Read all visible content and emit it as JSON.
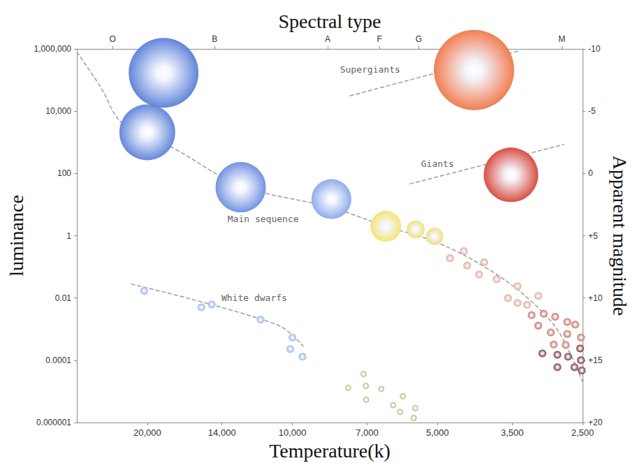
{
  "chart_data": {
    "type": "scatter",
    "x_label": "Temperature(k)",
    "x2_label": "Spectral type",
    "y_label": "luminance",
    "y2_label": "Apparent magnitude",
    "log": true,
    "grid": false,
    "xlim": [
      28000,
      2500
    ],
    "xticks": [
      {
        "value": 20000,
        "label": "20,000"
      },
      {
        "value": 14000,
        "label": "14,000"
      },
      {
        "value": 10000,
        "label": "10,000"
      },
      {
        "value": 7000,
        "label": "7,000"
      },
      {
        "value": 5000,
        "label": "5,000"
      },
      {
        "value": 3500,
        "label": "3,500"
      },
      {
        "value": 2500,
        "label": "2,500"
      }
    ],
    "x2lim": [
      28000,
      2500
    ],
    "x2ticks": [
      {
        "value": 23600,
        "label": "O"
      },
      {
        "value": 14500,
        "label": "B"
      },
      {
        "value": 8450,
        "label": "A"
      },
      {
        "value": 6600,
        "label": "F"
      },
      {
        "value": 5470,
        "label": "G"
      },
      {
        "value": 2760,
        "label": "M"
      }
    ],
    "ylim": [
      1e-06,
      1000000
    ],
    "yticks": [
      1e-06,
      0.0001,
      0.01,
      1,
      100,
      {
        "value": 10000,
        "label": "10,000"
      },
      {
        "value": 1000000,
        "label": "1,000,000"
      }
    ],
    "y2lim": [
      20,
      -10
    ],
    "y2ticks": [
      {
        "value": 20,
        "label": "+20"
      },
      {
        "value": 15,
        "label": "+15"
      },
      {
        "value": 10,
        "label": "+10"
      },
      {
        "value": 5,
        "label": "+5"
      },
      0,
      -5,
      -10
    ],
    "series": [
      {
        "type": "line",
        "line_style": "dashed",
        "color": "#9c9c9c",
        "x": [
          28000,
          25000,
          22500,
          17500,
          12800,
          8300,
          6400,
          5000,
          3900,
          3200,
          2800,
          2500
        ],
        "values": [
          800000,
          60000,
          4000,
          600,
          40,
          8,
          2,
          0.6,
          0.08,
          0.008,
          0.0008,
          2e-05
        ]
      },
      {
        "type": "line",
        "line_style": "dashed",
        "color": "#9c9c9c",
        "x": [
          7600,
          3390
        ],
        "values": [
          31000,
          860000
        ]
      },
      {
        "type": "line",
        "line_style": "dashed",
        "color": "#9c9c9c",
        "x": [
          5710,
          2730
        ],
        "values": [
          46,
          860
        ]
      },
      {
        "type": "line",
        "line_style": "dashed",
        "color": "#9c9c9c",
        "x": [
          21600,
          10770,
          9490
        ],
        "values": [
          0.028,
          0.0014,
          0.00028
        ]
      },
      {
        "type": "scatter",
        "marker": "sphere",
        "x": [
          18500,
          4200,
          3520,
          20000,
          12800,
          8300,
          6400,
          5550,
          5070
        ],
        "values": [
          170000,
          210000,
          90,
          2100,
          36,
          15,
          2,
          1.6,
          0.95
        ],
        "sizes": [
          100,
          115,
          78,
          80,
          72,
          57,
          44,
          26,
          25
        ],
        "colors": [
          "#5a7fd8",
          "#f0784a",
          "#d8463a",
          "#5d82d8",
          "#6d8fdf",
          "#8aa8ea",
          "#f2e46a",
          "#f0e070",
          "#f0dc78"
        ]
      },
      {
        "type": "scatter",
        "marker": "sphere",
        "color": "#8fb5ea",
        "x": [
          20300,
          15450,
          14700,
          11640,
          10000,
          10100,
          9530
        ],
        "values": [
          0.017,
          0.005,
          0.0062,
          0.002,
          0.00054,
          0.00023,
          0.00013
        ]
      },
      {
        "type": "scatter",
        "marker": "sphere",
        "color": "#e6a48c",
        "x": [
          4710,
          4410,
          4340,
          4000,
          4100,
          3770,
          3410,
          3570,
          3410,
          3260,
          3090
        ],
        "values": [
          0.19,
          0.32,
          0.11,
          0.14,
          0.057,
          0.04,
          0.024,
          0.01,
          0.0069,
          0.006,
          0.0117
        ]
      },
      {
        "type": "scatter",
        "marker": "sphere",
        "color": "#c56a58",
        "x": [
          3190,
          3010,
          2850,
          2690,
          2590,
          3090,
          2910,
          2690,
          2520,
          2870,
          2710
        ],
        "values": [
          0.0028,
          0.0031,
          0.0025,
          0.0017,
          0.0014,
          0.0013,
          0.00078,
          0.0007,
          0.00054,
          0.00032,
          0.00031
        ]
      },
      {
        "type": "scatter",
        "marker": "sphere",
        "color": "#74282a",
        "x": [
          2530,
          3030,
          2820,
          2680,
          2520,
          2820,
          2600,
          2510
        ],
        "values": [
          0.00024,
          0.000167,
          0.00015,
          0.00013,
          0.0001,
          6e-05,
          6e-05,
          4.7e-05
        ]
      },
      {
        "type": "scatter",
        "marker": "ring",
        "color": "#b9bb7e",
        "x": [
          7660,
          7120,
          7040,
          7030,
          6540,
          6180,
          5980,
          5900,
          5600,
          5560
        ],
        "values": [
          1.3e-05,
          3.6e-05,
          1.5e-05,
          5.4e-06,
          1.2e-05,
          3.6e-06,
          2.2e-06,
          7e-06,
          1.4e-06,
          2.9e-06
        ]
      }
    ],
    "annotations": [
      {
        "text": "Supergiants",
        "x": 6900,
        "y": 215000
      },
      {
        "text": "Giants",
        "x": 5000,
        "y": 200
      },
      {
        "text": "Main sequence",
        "x": 11500,
        "y": 3.5
      },
      {
        "text": "White dwarfs",
        "x": 12000,
        "y": 0.01
      }
    ]
  }
}
